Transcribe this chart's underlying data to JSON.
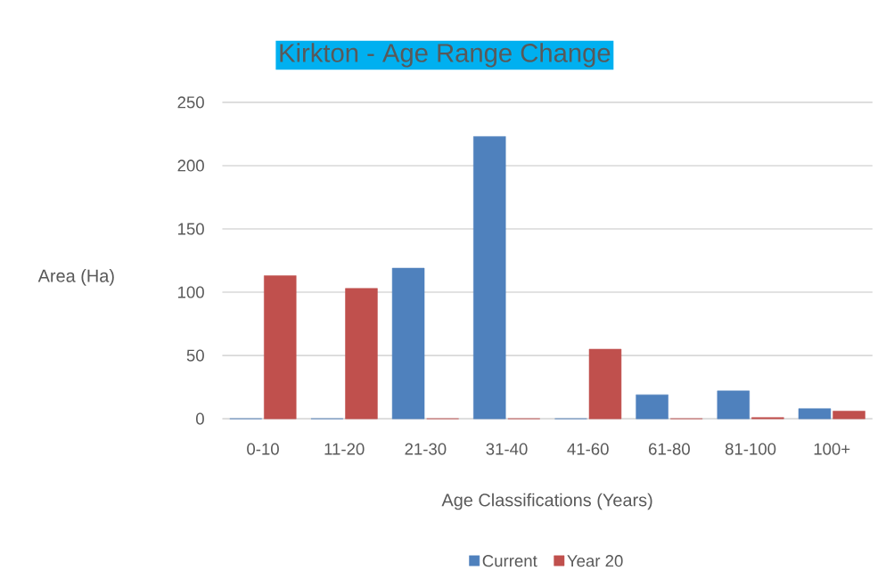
{
  "chart_data": {
    "type": "bar",
    "title": "Kirkton - Age Range Change",
    "xlabel": "Age Classifications (Years)",
    "ylabel": "Area (Ha)",
    "categories": [
      "0-10",
      "11-20",
      "21-30",
      "31-40",
      "41-60",
      "61-80",
      "81-100",
      "100+"
    ],
    "series": [
      {
        "name": "Current",
        "color": "#4f81bd",
        "values": [
          0,
          0,
          119,
          223,
          0,
          19,
          22,
          8
        ]
      },
      {
        "name": "Year 20",
        "color": "#c0504d",
        "values": [
          113,
          103,
          0,
          0,
          55,
          0,
          1,
          6
        ]
      }
    ],
    "ylim": [
      0,
      250
    ],
    "yticks": [
      0,
      50,
      100,
      150,
      200,
      250
    ],
    "grid": "y",
    "legend": "bottom"
  }
}
